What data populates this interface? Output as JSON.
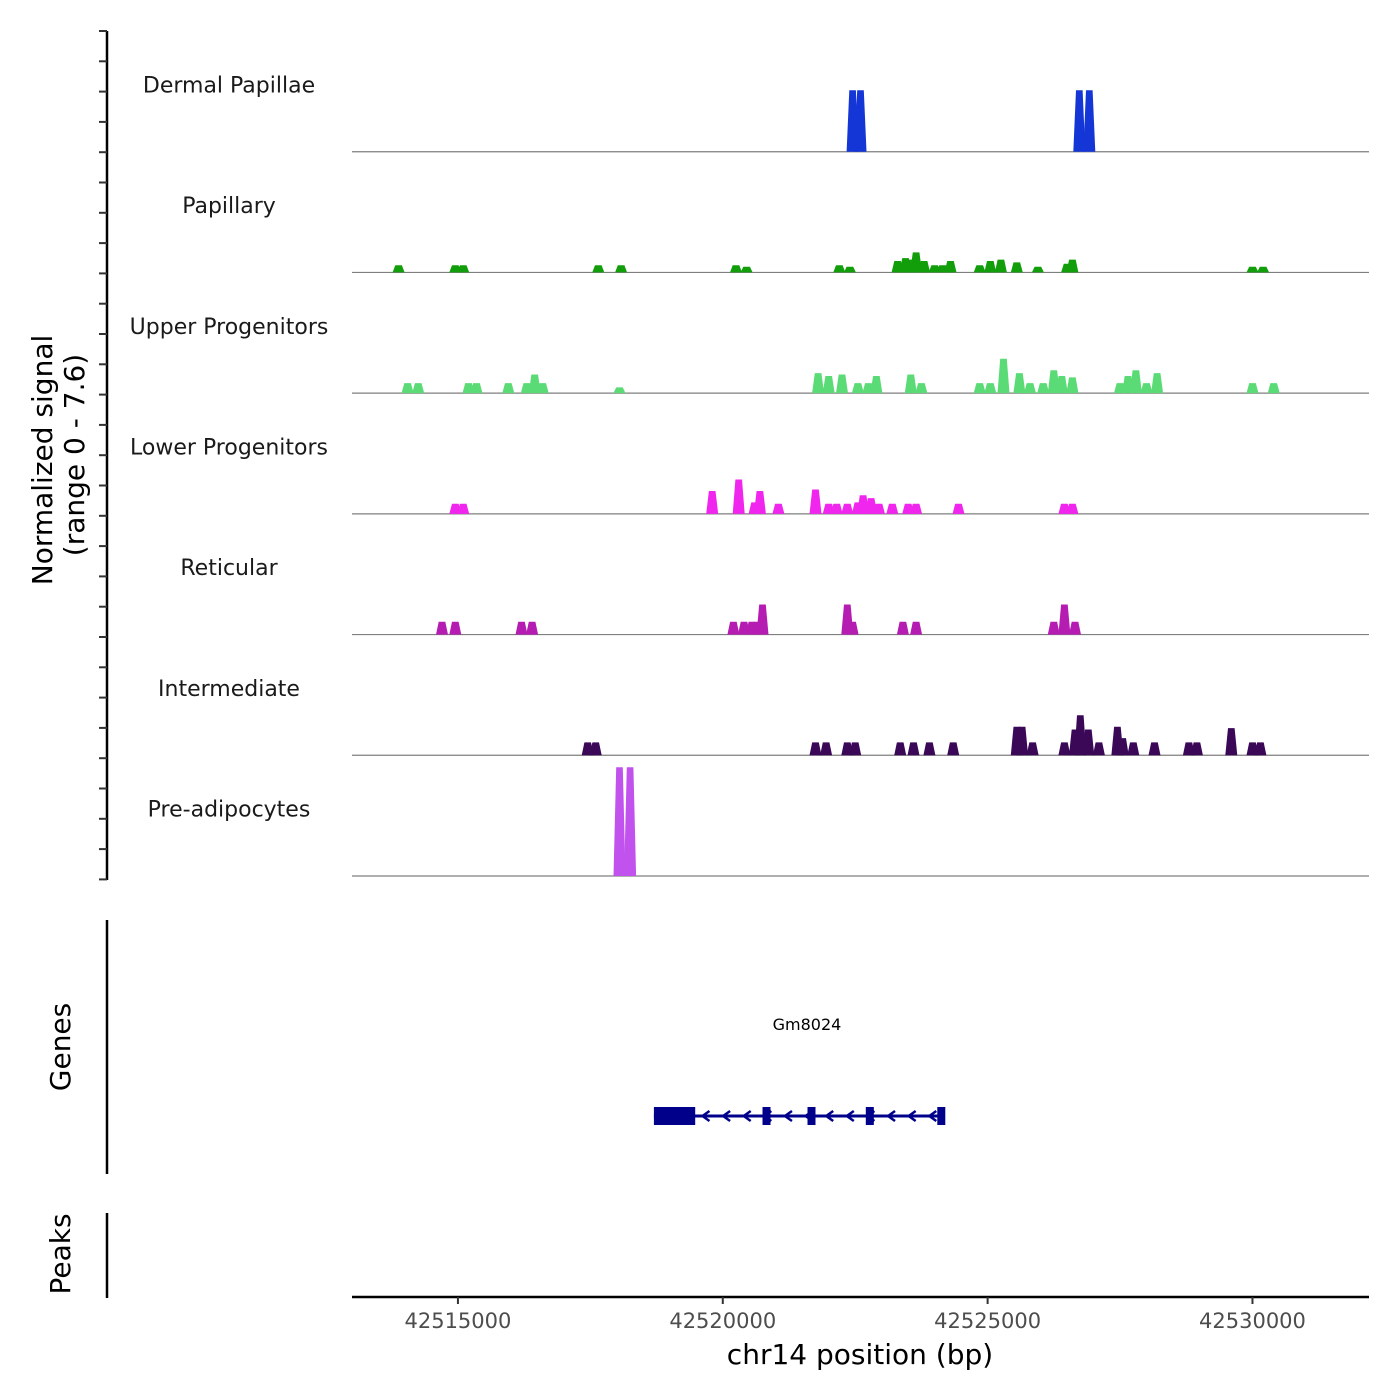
{
  "chart_data": {
    "type": "area",
    "title": "",
    "ylabel_line1": "Normalized signal",
    "ylabel_line2": "(range 0 - 7.6)",
    "xlabel": "chr14 position (bp)",
    "genes_label": "Genes",
    "peaks_label": "Peaks",
    "ylim": [
      0,
      7.6
    ],
    "xlim": [
      42513000,
      42532200
    ],
    "x_ticks": [
      42515000,
      42520000,
      42525000,
      42530000
    ],
    "x_tick_labels": [
      "42515000",
      "42520000",
      "42525000",
      "42530000"
    ],
    "tracks": [
      {
        "name": "Dermal Papillae",
        "color": "#1536d6",
        "peaks": [
          [
            42522450,
            4.3
          ],
          [
            42522600,
            4.3
          ],
          [
            42526730,
            4.3
          ],
          [
            42526920,
            4.3
          ]
        ]
      },
      {
        "name": "Papillary",
        "color": "#119e0a",
        "peaks": [
          [
            42513880,
            0.5
          ],
          [
            42514950,
            0.5
          ],
          [
            42515100,
            0.5
          ],
          [
            42517650,
            0.5
          ],
          [
            42518080,
            0.5
          ],
          [
            42520250,
            0.5
          ],
          [
            42520450,
            0.4
          ],
          [
            42522200,
            0.5
          ],
          [
            42522400,
            0.4
          ],
          [
            42523300,
            0.8
          ],
          [
            42523450,
            1.0
          ],
          [
            42523550,
            0.9
          ],
          [
            42523650,
            1.4
          ],
          [
            42523800,
            0.8
          ],
          [
            42524000,
            0.5
          ],
          [
            42524150,
            0.5
          ],
          [
            42524300,
            0.8
          ],
          [
            42524850,
            0.5
          ],
          [
            42525050,
            0.8
          ],
          [
            42525250,
            0.9
          ],
          [
            42525550,
            0.7
          ],
          [
            42525950,
            0.4
          ],
          [
            42526500,
            0.6
          ],
          [
            42526600,
            0.9
          ],
          [
            42530000,
            0.4
          ],
          [
            42530200,
            0.4
          ]
        ]
      },
      {
        "name": "Upper Progenitors",
        "color": "#5bdb76",
        "peaks": [
          [
            42514050,
            0.7
          ],
          [
            42514250,
            0.7
          ],
          [
            42515200,
            0.7
          ],
          [
            42515350,
            0.7
          ],
          [
            42515950,
            0.7
          ],
          [
            42516300,
            0.7
          ],
          [
            42516450,
            1.3
          ],
          [
            42516600,
            0.7
          ],
          [
            42518050,
            0.4
          ],
          [
            42521800,
            1.4
          ],
          [
            42522000,
            1.2
          ],
          [
            42522250,
            1.3
          ],
          [
            42522550,
            0.7
          ],
          [
            42522750,
            0.7
          ],
          [
            42522900,
            1.2
          ],
          [
            42523550,
            1.3
          ],
          [
            42523750,
            0.7
          ],
          [
            42524850,
            0.7
          ],
          [
            42525050,
            0.7
          ],
          [
            42525300,
            2.4
          ],
          [
            42525600,
            1.4
          ],
          [
            42525800,
            0.7
          ],
          [
            42526050,
            0.7
          ],
          [
            42526250,
            1.6
          ],
          [
            42526400,
            1.2
          ],
          [
            42526600,
            1.1
          ],
          [
            42527500,
            0.7
          ],
          [
            42527650,
            1.2
          ],
          [
            42527800,
            1.6
          ],
          [
            42528000,
            0.7
          ],
          [
            42528200,
            1.4
          ],
          [
            42530000,
            0.7
          ],
          [
            42530400,
            0.7
          ]
        ]
      },
      {
        "name": "Lower Progenitors",
        "color": "#f026ee",
        "peaks": [
          [
            42514950,
            0.7
          ],
          [
            42515100,
            0.7
          ],
          [
            42519800,
            1.6
          ],
          [
            42520300,
            2.4
          ],
          [
            42520600,
            0.8
          ],
          [
            42520700,
            1.6
          ],
          [
            42521050,
            0.7
          ],
          [
            42521750,
            1.7
          ],
          [
            42522000,
            0.7
          ],
          [
            42522150,
            0.7
          ],
          [
            42522350,
            0.7
          ],
          [
            42522550,
            0.8
          ],
          [
            42522650,
            1.3
          ],
          [
            42522800,
            1.1
          ],
          [
            42522950,
            0.7
          ],
          [
            42523200,
            0.7
          ],
          [
            42523500,
            0.7
          ],
          [
            42523650,
            0.7
          ],
          [
            42524450,
            0.7
          ],
          [
            42526450,
            0.7
          ],
          [
            42526600,
            0.7
          ]
        ]
      },
      {
        "name": "Reticular",
        "color": "#b41cb2",
        "peaks": [
          [
            42514700,
            0.9
          ],
          [
            42514950,
            0.9
          ],
          [
            42516200,
            0.9
          ],
          [
            42516400,
            0.9
          ],
          [
            42520200,
            0.9
          ],
          [
            42520400,
            0.9
          ],
          [
            42520550,
            0.9
          ],
          [
            42520650,
            0.9
          ],
          [
            42520750,
            2.1
          ],
          [
            42522350,
            2.1
          ],
          [
            42522450,
            0.9
          ],
          [
            42523400,
            0.9
          ],
          [
            42523650,
            0.9
          ],
          [
            42526250,
            0.9
          ],
          [
            42526450,
            2.1
          ],
          [
            42526650,
            0.9
          ]
        ]
      },
      {
        "name": "Intermediate",
        "color": "#3b0857",
        "peaks": [
          [
            42517450,
            0.9
          ],
          [
            42517600,
            0.9
          ],
          [
            42521750,
            0.9
          ],
          [
            42521950,
            0.9
          ],
          [
            42522350,
            0.9
          ],
          [
            42522500,
            0.9
          ],
          [
            42523350,
            0.9
          ],
          [
            42523600,
            0.9
          ],
          [
            42523900,
            0.9
          ],
          [
            42524350,
            0.9
          ],
          [
            42525550,
            2.0
          ],
          [
            42525650,
            2.0
          ],
          [
            42525850,
            0.9
          ],
          [
            42526450,
            0.9
          ],
          [
            42526650,
            1.8
          ],
          [
            42526750,
            2.8
          ],
          [
            42526900,
            1.8
          ],
          [
            42527100,
            0.9
          ],
          [
            42527450,
            2.0
          ],
          [
            42527550,
            1.2
          ],
          [
            42527750,
            0.9
          ],
          [
            42528150,
            0.9
          ],
          [
            42528800,
            0.9
          ],
          [
            42528950,
            0.9
          ],
          [
            42529600,
            1.9
          ],
          [
            42530000,
            0.9
          ],
          [
            42530150,
            0.9
          ]
        ]
      },
      {
        "name": "Pre-adipocytes",
        "color": "#c252ee",
        "peaks": [
          [
            42518050,
            7.6
          ],
          [
            42518250,
            7.6
          ]
        ]
      }
    ],
    "gene": {
      "name": "Gm8024",
      "color": "#00008b",
      "start": 42518700,
      "end": 42524150,
      "strand": "-",
      "exons": [
        [
          42518700,
          42519480
        ],
        [
          42520750,
          42520900
        ],
        [
          42521600,
          42521700
        ],
        [
          42522700,
          42522830
        ],
        [
          42524050,
          42524150
        ]
      ]
    },
    "peaks_track": []
  }
}
